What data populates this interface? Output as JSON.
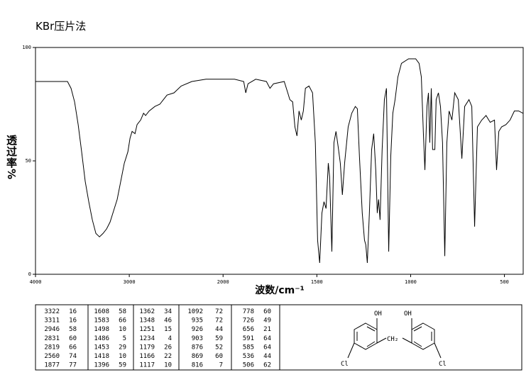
{
  "chart_data": {
    "type": "line",
    "title": "KBr压片法",
    "x_label": "波数/cm⁻¹",
    "y_label": "透过率%",
    "xlim": [
      4000,
      400
    ],
    "ylim": [
      0,
      100
    ],
    "xticks": [
      4000,
      3000,
      2000,
      1500,
      1000,
      500
    ],
    "yticks": [
      0,
      50,
      100
    ],
    "color": "#000000",
    "x": [
      4000,
      3659,
      3621,
      3583,
      3545,
      3508,
      3470,
      3432,
      3394,
      3356,
      3318,
      3280,
      3242,
      3205,
      3167,
      3129,
      3091,
      3053,
      3015,
      2992,
      2970,
      2939,
      2917,
      2879,
      2848,
      2826,
      2788,
      2727,
      2674,
      2636,
      2598,
      2523,
      2447,
      2333,
      2182,
      2000,
      1939,
      1890,
      1879,
      1867,
      1826,
      1769,
      1750,
      1731,
      1674,
      1655,
      1644,
      1629,
      1617,
      1606,
      1595,
      1583,
      1572,
      1561,
      1542,
      1523,
      1508,
      1496,
      1485,
      1473,
      1462,
      1451,
      1439,
      1432,
      1420,
      1409,
      1398,
      1386,
      1375,
      1364,
      1352,
      1333,
      1314,
      1295,
      1284,
      1273,
      1258,
      1246,
      1239,
      1231,
      1220,
      1208,
      1197,
      1186,
      1178,
      1171,
      1163,
      1152,
      1140,
      1129,
      1117,
      1106,
      1095,
      1083,
      1068,
      1049,
      1011,
      973,
      955,
      943,
      932,
      924,
      913,
      905,
      898,
      890,
      883,
      871,
      864,
      852,
      841,
      830,
      818,
      807,
      795,
      780,
      765,
      746,
      727,
      712,
      689,
      674,
      659,
      644,
      621,
      598,
      576,
      553,
      542,
      530,
      515,
      492,
      470,
      447,
      424,
      401
    ],
    "values": [
      85,
      85,
      82,
      76,
      66,
      54,
      41,
      32,
      24,
      18,
      16.5,
      18,
      20,
      23,
      28,
      33,
      41,
      49,
      54,
      60,
      63,
      62,
      66,
      68,
      71,
      70,
      72,
      74,
      75,
      77,
      79,
      80,
      83,
      85,
      86,
      86,
      86,
      85,
      80,
      84,
      86,
      85,
      82,
      84,
      85,
      80,
      77,
      76,
      65,
      61,
      72,
      68,
      72,
      82,
      83,
      80,
      58,
      15,
      5,
      27,
      32,
      29,
      49,
      43,
      10,
      58,
      63,
      56,
      49,
      35,
      49,
      65,
      71,
      74,
      73,
      52,
      27,
      15,
      13,
      5,
      27,
      55,
      62,
      46,
      27,
      33,
      24,
      55,
      77,
      82,
      10,
      52,
      71,
      77,
      87,
      93,
      95,
      95,
      93,
      87,
      62,
      46,
      74,
      80,
      58,
      82,
      55,
      55,
      77,
      80,
      74,
      58,
      8,
      58,
      72,
      68,
      80,
      77,
      51,
      74,
      77,
      74,
      21,
      65,
      68,
      70,
      67,
      68,
      46,
      63,
      65,
      66,
      68,
      72,
      72,
      71
    ]
  },
  "peak_table": {
    "columns": [
      [
        [
          3322,
          16
        ],
        [
          3311,
          16
        ],
        [
          2946,
          58
        ],
        [
          2831,
          60
        ],
        [
          2819,
          66
        ],
        [
          2560,
          74
        ],
        [
          1877,
          77
        ]
      ],
      [
        [
          1608,
          58
        ],
        [
          1583,
          66
        ],
        [
          1498,
          10
        ],
        [
          1486,
          5
        ],
        [
          1453,
          29
        ],
        [
          1418,
          10
        ],
        [
          1396,
          59
        ]
      ],
      [
        [
          1362,
          34
        ],
        [
          1348,
          46
        ],
        [
          1251,
          15
        ],
        [
          1234,
          4
        ],
        [
          1179,
          26
        ],
        [
          1166,
          22
        ],
        [
          1117,
          10
        ]
      ],
      [
        [
          1092,
          72
        ],
        [
          935,
          72
        ],
        [
          926,
          44
        ],
        [
          903,
          59
        ],
        [
          876,
          52
        ],
        [
          869,
          60
        ],
        [
          816,
          7
        ]
      ],
      [
        [
          778,
          60
        ],
        [
          726,
          49
        ],
        [
          656,
          21
        ],
        [
          591,
          64
        ],
        [
          585,
          64
        ],
        [
          536,
          44
        ],
        [
          506,
          62
        ]
      ]
    ]
  },
  "structure": {
    "labels": [
      "OH",
      "OH",
      "CH₂",
      "Cl",
      "Cl"
    ]
  }
}
